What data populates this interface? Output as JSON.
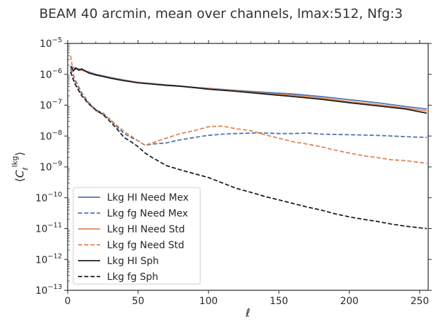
{
  "chart_data": {
    "type": "line",
    "title": "BEAM 40 arcmin, mean over channels, lmax:512, Nfg:3",
    "xlabel": "ℓ",
    "ylabel": "⟨C_ℓ^lkg⟩",
    "y_scale": "log",
    "xlim": [
      0,
      256
    ],
    "ylim": [
      1e-13,
      1e-05
    ],
    "x_ticks": [
      0,
      50,
      100,
      150,
      200,
      250
    ],
    "x_tick_labels": [
      "0",
      "50",
      "100",
      "150",
      "200",
      "250"
    ],
    "y_ticks": [
      -13,
      -12,
      -11,
      -10,
      -9,
      -8,
      -7,
      -6,
      -5
    ],
    "grid": false,
    "legend_position": "lower-left",
    "series": [
      {
        "name": "Lkg HI Need Mex",
        "color": "#4c72b0",
        "style": "solid",
        "points": [
          [
            2,
            1.8e-06
          ],
          [
            5,
            1.6e-06
          ],
          [
            10,
            1.4e-06
          ],
          [
            20,
            1e-06
          ],
          [
            30,
            8e-07
          ],
          [
            40,
            6.5e-07
          ],
          [
            50,
            5.5e-07
          ],
          [
            60,
            5e-07
          ],
          [
            70,
            4.5e-07
          ],
          [
            80,
            4.2e-07
          ],
          [
            90,
            3.8e-07
          ],
          [
            100,
            3.5e-07
          ],
          [
            120,
            3e-07
          ],
          [
            140,
            2.6e-07
          ],
          [
            160,
            2.3e-07
          ],
          [
            180,
            1.9e-07
          ],
          [
            200,
            1.5e-07
          ],
          [
            220,
            1.2e-07
          ],
          [
            240,
            9e-08
          ],
          [
            255,
            7.5e-08
          ]
        ]
      },
      {
        "name": "Lkg fg Need Mex",
        "color": "#4c72b0",
        "style": "dashed",
        "points": [
          [
            2,
            1.5e-06
          ],
          [
            5,
            7e-07
          ],
          [
            10,
            2.5e-07
          ],
          [
            15,
            1.2e-07
          ],
          [
            20,
            7e-08
          ],
          [
            25,
            5.5e-08
          ],
          [
            30,
            3.5e-08
          ],
          [
            35,
            2e-08
          ],
          [
            40,
            1.2e-08
          ],
          [
            45,
            9e-09
          ],
          [
            50,
            7e-09
          ],
          [
            55,
            5e-09
          ],
          [
            60,
            5.5e-09
          ],
          [
            70,
            6e-09
          ],
          [
            80,
            7.5e-09
          ],
          [
            90,
            9e-09
          ],
          [
            100,
            1.05e-08
          ],
          [
            110,
            1.15e-08
          ],
          [
            120,
            1.2e-08
          ],
          [
            130,
            1.25e-08
          ],
          [
            140,
            1.25e-08
          ],
          [
            150,
            1.2e-08
          ],
          [
            160,
            1.2e-08
          ],
          [
            170,
            1.25e-08
          ],
          [
            180,
            1.15e-08
          ],
          [
            200,
            1.1e-08
          ],
          [
            220,
            1.05e-08
          ],
          [
            240,
            9.5e-09
          ],
          [
            255,
            9e-09
          ]
        ]
      },
      {
        "name": "Lkg HI Need Std",
        "color": "#dd8452",
        "style": "solid",
        "points": [
          [
            2,
            1.7e-06
          ],
          [
            5,
            1.5e-06
          ],
          [
            10,
            1.35e-06
          ],
          [
            20,
            9.5e-07
          ],
          [
            30,
            7.8e-07
          ],
          [
            40,
            6.3e-07
          ],
          [
            50,
            5.4e-07
          ],
          [
            60,
            4.9e-07
          ],
          [
            70,
            4.4e-07
          ],
          [
            80,
            4.1e-07
          ],
          [
            90,
            3.7e-07
          ],
          [
            100,
            3.4e-07
          ],
          [
            120,
            2.9e-07
          ],
          [
            140,
            2.4e-07
          ],
          [
            160,
            2.1e-07
          ],
          [
            180,
            1.7e-07
          ],
          [
            200,
            1.3e-07
          ],
          [
            220,
            1.05e-07
          ],
          [
            240,
            8e-08
          ],
          [
            255,
            6.5e-08
          ]
        ]
      },
      {
        "name": "Lkg fg Need Std",
        "color": "#dd8452",
        "style": "dashed",
        "points": [
          [
            2,
            4e-06
          ],
          [
            5,
            6e-07
          ],
          [
            10,
            2.2e-07
          ],
          [
            15,
            1.1e-07
          ],
          [
            20,
            6.5e-08
          ],
          [
            25,
            5e-08
          ],
          [
            30,
            3.5e-08
          ],
          [
            35,
            2.2e-08
          ],
          [
            40,
            1.4e-08
          ],
          [
            45,
            1e-08
          ],
          [
            50,
            7e-09
          ],
          [
            55,
            5e-09
          ],
          [
            60,
            6e-09
          ],
          [
            70,
            8.5e-09
          ],
          [
            80,
            1.2e-08
          ],
          [
            90,
            1.5e-08
          ],
          [
            100,
            2e-08
          ],
          [
            110,
            2.1e-08
          ],
          [
            120,
            1.7e-08
          ],
          [
            130,
            1.5e-08
          ],
          [
            140,
            1.1e-08
          ],
          [
            150,
            8.5e-09
          ],
          [
            160,
            6.5e-09
          ],
          [
            170,
            5.5e-09
          ],
          [
            180,
            4.5e-09
          ],
          [
            190,
            3.5e-09
          ],
          [
            200,
            2.8e-09
          ],
          [
            210,
            2.3e-09
          ],
          [
            220,
            2e-09
          ],
          [
            230,
            1.7e-09
          ],
          [
            240,
            1.6e-09
          ],
          [
            255,
            1.3e-09
          ]
        ]
      },
      {
        "name": "Lkg HI Sph",
        "color": "#1a1a1a",
        "style": "solid",
        "points": [
          [
            2,
            1.8e-06
          ],
          [
            4,
            1.3e-06
          ],
          [
            6,
            1.6e-06
          ],
          [
            8,
            1.35e-06
          ],
          [
            10,
            1.5e-06
          ],
          [
            15,
            1.1e-06
          ],
          [
            20,
            9.5e-07
          ],
          [
            25,
            8.5e-07
          ],
          [
            30,
            7.5e-07
          ],
          [
            35,
            6.8e-07
          ],
          [
            40,
            6.2e-07
          ],
          [
            50,
            5.3e-07
          ],
          [
            60,
            4.8e-07
          ],
          [
            70,
            4.4e-07
          ],
          [
            80,
            4.1e-07
          ],
          [
            90,
            3.7e-07
          ],
          [
            100,
            3.3e-07
          ],
          [
            120,
            2.8e-07
          ],
          [
            140,
            2.3e-07
          ],
          [
            160,
            1.9e-07
          ],
          [
            180,
            1.55e-07
          ],
          [
            200,
            1.2e-07
          ],
          [
            220,
            9.5e-08
          ],
          [
            240,
            7.5e-08
          ],
          [
            255,
            5.5e-08
          ]
        ]
      },
      {
        "name": "Lkg fg Sph",
        "color": "#1a1a1a",
        "style": "dashed",
        "points": [
          [
            2,
            1.2e-06
          ],
          [
            5,
            5e-07
          ],
          [
            10,
            2e-07
          ],
          [
            15,
            1.1e-07
          ],
          [
            20,
            7e-08
          ],
          [
            25,
            5e-08
          ],
          [
            30,
            3e-08
          ],
          [
            35,
            1.7e-08
          ],
          [
            40,
            9e-09
          ],
          [
            45,
            6.5e-09
          ],
          [
            50,
            4.5e-09
          ],
          [
            55,
            2.8e-09
          ],
          [
            60,
            2e-09
          ],
          [
            65,
            1.5e-09
          ],
          [
            70,
            1.1e-09
          ],
          [
            80,
            8e-10
          ],
          [
            90,
            6e-10
          ],
          [
            100,
            4.5e-10
          ],
          [
            110,
            3e-10
          ],
          [
            120,
            2e-10
          ],
          [
            130,
            1.5e-10
          ],
          [
            140,
            1.1e-10
          ],
          [
            150,
            8.5e-11
          ],
          [
            160,
            6.5e-11
          ],
          [
            170,
            5e-11
          ],
          [
            180,
            4e-11
          ],
          [
            190,
            3e-11
          ],
          [
            200,
            2.4e-11
          ],
          [
            210,
            2e-11
          ],
          [
            220,
            1.7e-11
          ],
          [
            230,
            1.4e-11
          ],
          [
            240,
            1.2e-11
          ],
          [
            255,
            1e-11
          ]
        ]
      }
    ]
  }
}
